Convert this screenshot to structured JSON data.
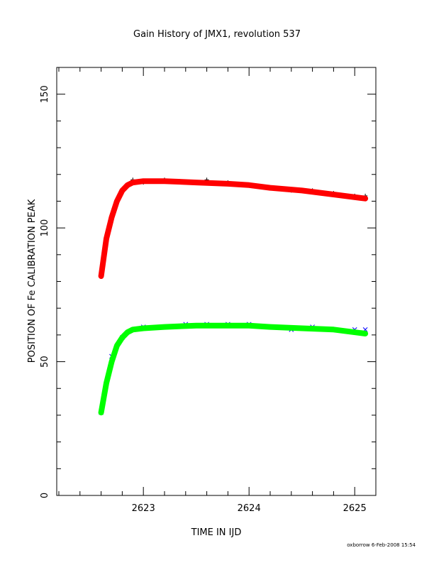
{
  "chart_data": {
    "type": "scatter",
    "title": "Gain History of JMX1, revolution 537",
    "xlabel": "TIME IN IJD",
    "ylabel": "POSITION OF Fe CALIBRATION PEAK",
    "xlim": [
      2622.18,
      2625.2
    ],
    "ylim": [
      0,
      160
    ],
    "xticks": [
      2623,
      2624,
      2625
    ],
    "xtick_labels": [
      "2623",
      "2624",
      "2625"
    ],
    "yticks": [
      0,
      50,
      100,
      150
    ],
    "ytick_labels": [
      "0",
      "50",
      "100",
      "150"
    ],
    "grid": false,
    "footer": "oxborrow  6-Feb-2008 15:54",
    "series": [
      {
        "marker": "plus",
        "color": "#000000",
        "x": [
          2622.6,
          2622.7,
          2622.8,
          2622.9,
          2623.0,
          2623.2,
          2623.4,
          2623.6,
          2623.8,
          2624.0,
          2624.2,
          2624.4,
          2624.6,
          2624.8,
          2625.0,
          2625.1
        ],
        "y": [
          82,
          103,
          114,
          118,
          117,
          118,
          117,
          118,
          117,
          116,
          115,
          114,
          114,
          113,
          112,
          112
        ]
      },
      {
        "marker": "curve",
        "color": "#ff0000",
        "x": [
          2622.6,
          2622.65,
          2622.7,
          2622.75,
          2622.8,
          2622.85,
          2622.9,
          2623.0,
          2623.2,
          2623.5,
          2623.8,
          2624.0,
          2624.2,
          2624.5,
          2624.8,
          2625.1
        ],
        "y": [
          82,
          96,
          104,
          110,
          114,
          116,
          117,
          117.5,
          117.5,
          117,
          116.5,
          116,
          115,
          114,
          112.5,
          111
        ]
      },
      {
        "marker": "cross",
        "color": "#0000ff",
        "x": [
          2622.6,
          2622.7,
          2622.8,
          2622.9,
          2623.0,
          2623.2,
          2623.4,
          2623.6,
          2623.8,
          2624.0,
          2624.2,
          2624.4,
          2624.6,
          2624.8,
          2625.0,
          2625.1
        ],
        "y": [
          31,
          52,
          59,
          62,
          63,
          63,
          64,
          64,
          64,
          64,
          63,
          62,
          63,
          62,
          62,
          62
        ]
      },
      {
        "marker": "curve",
        "color": "#00ff00",
        "x": [
          2622.6,
          2622.65,
          2622.7,
          2622.75,
          2622.8,
          2622.85,
          2622.9,
          2623.0,
          2623.2,
          2623.5,
          2623.8,
          2624.0,
          2624.2,
          2624.5,
          2624.8,
          2625.1
        ],
        "y": [
          31,
          42,
          50,
          56,
          59,
          61,
          62,
          62.5,
          63,
          63.5,
          63.5,
          63.5,
          63,
          62.5,
          62,
          60.5
        ]
      }
    ]
  }
}
